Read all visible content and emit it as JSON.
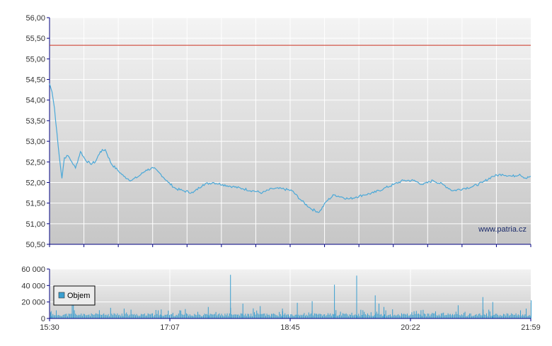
{
  "colors": {
    "price_line": "#4aa8d8",
    "reference_line": "#cc3322",
    "volume_bars": "#3a9fd0",
    "grid": "#ffffff",
    "axis": "#000080",
    "bg_top": "#f2f2f2",
    "bg_bottom": "#c8c8c8"
  },
  "watermark": "www.patria.cz",
  "chart_data": [
    {
      "type": "line",
      "title": "",
      "xlabel": "",
      "ylabel": "",
      "ylim": [
        50.5,
        56.0
      ],
      "yticks": [
        "50,50",
        "51,00",
        "51,50",
        "52,00",
        "52,50",
        "53,00",
        "53,50",
        "54,00",
        "54,50",
        "55,00",
        "55,50",
        "56,00"
      ],
      "reference_line": 55.33,
      "grid": true,
      "series": [
        {
          "x": [
            "15:30",
            "15:32",
            "15:34",
            "15:36",
            "15:38",
            "15:40",
            "15:42",
            "15:45",
            "15:48",
            "15:51",
            "15:55",
            "15:59",
            "16:03",
            "16:07",
            "16:11",
            "16:15",
            "16:20",
            "16:25",
            "16:30",
            "16:36",
            "16:42",
            "16:48",
            "16:54",
            "17:00",
            "17:06",
            "17:12",
            "17:18",
            "17:26",
            "17:34",
            "17:42",
            "17:50",
            "17:58",
            "18:06",
            "18:14",
            "18:22",
            "18:30",
            "18:38",
            "18:46",
            "18:54",
            "19:02",
            "19:08",
            "19:14",
            "19:20",
            "19:26",
            "19:32",
            "19:38",
            "19:44",
            "19:52",
            "20:00",
            "20:08",
            "20:16",
            "20:24",
            "20:32",
            "20:40",
            "20:48",
            "20:56",
            "21:04",
            "21:12",
            "21:20",
            "21:28",
            "21:36",
            "21:44",
            "21:50",
            "21:55",
            "21:59"
          ],
          "y": [
            54.4,
            54.2,
            53.8,
            53.2,
            52.6,
            52.1,
            52.6,
            52.65,
            52.5,
            52.35,
            52.75,
            52.55,
            52.45,
            52.5,
            52.75,
            52.8,
            52.45,
            52.3,
            52.15,
            52.05,
            52.15,
            52.3,
            52.35,
            52.2,
            52.0,
            51.85,
            51.8,
            51.75,
            51.95,
            52.0,
            51.95,
            51.9,
            51.85,
            51.8,
            51.75,
            51.85,
            51.85,
            51.8,
            51.55,
            51.35,
            51.28,
            51.55,
            51.7,
            51.65,
            51.6,
            51.65,
            51.7,
            51.75,
            51.85,
            51.95,
            52.05,
            52.05,
            51.95,
            52.05,
            51.95,
            51.8,
            51.85,
            51.9,
            52.0,
            52.15,
            52.2,
            52.15,
            52.2,
            52.1,
            52.15
          ]
        }
      ]
    },
    {
      "type": "bar",
      "title": "",
      "ylim": [
        0,
        60000
      ],
      "yticks": [
        "0",
        "20 000",
        "40 000",
        "60 000"
      ],
      "xticks": [
        "15:30",
        "17:07",
        "18:45",
        "20:22",
        "21:59"
      ],
      "legend": [
        "Objem"
      ],
      "legend_position": "bottom-left",
      "grid": true,
      "series": [
        {
          "name": "Objem",
          "baseline": 4500,
          "spikes": [
            {
              "x": "15:31",
              "y": 9000
            },
            {
              "x": "15:48",
              "y": 26000
            },
            {
              "x": "15:49",
              "y": 17000
            },
            {
              "x": "16:10",
              "y": 10000
            },
            {
              "x": "16:30",
              "y": 12000
            },
            {
              "x": "17:00",
              "y": 11000
            },
            {
              "x": "17:38",
              "y": 14000
            },
            {
              "x": "17:56",
              "y": 53000
            },
            {
              "x": "18:06",
              "y": 18000
            },
            {
              "x": "18:20",
              "y": 15000
            },
            {
              "x": "18:38",
              "y": 12000
            },
            {
              "x": "18:50",
              "y": 19000
            },
            {
              "x": "19:02",
              "y": 21000
            },
            {
              "x": "19:20",
              "y": 41000
            },
            {
              "x": "19:38",
              "y": 52000
            },
            {
              "x": "19:43",
              "y": 10000
            },
            {
              "x": "19:53",
              "y": 28000
            },
            {
              "x": "19:56",
              "y": 18000
            },
            {
              "x": "20:00",
              "y": 14000
            },
            {
              "x": "20:30",
              "y": 10000
            },
            {
              "x": "21:00",
              "y": 16000
            },
            {
              "x": "21:20",
              "y": 26000
            },
            {
              "x": "21:28",
              "y": 20000
            },
            {
              "x": "21:55",
              "y": 12000
            },
            {
              "x": "21:59",
              "y": 22000
            }
          ]
        }
      ]
    }
  ]
}
